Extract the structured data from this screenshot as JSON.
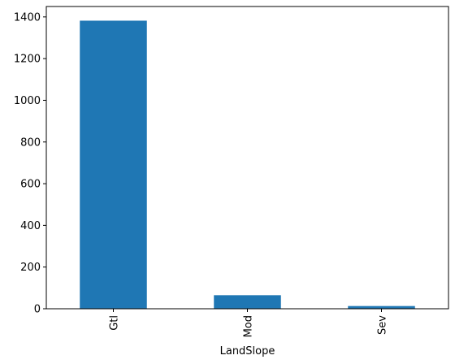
{
  "chart_data": {
    "type": "bar",
    "categories": [
      "Gtl",
      "Mod",
      "Sev"
    ],
    "values": [
      1382,
      65,
      13
    ],
    "xlabel": "LandSlope",
    "ylabel": "",
    "ylim": [
      0,
      1450
    ],
    "yticks": [
      0,
      200,
      400,
      600,
      800,
      1000,
      1200,
      1400
    ],
    "bar_color": "#1f77b4",
    "grid": false,
    "legend": "none"
  }
}
